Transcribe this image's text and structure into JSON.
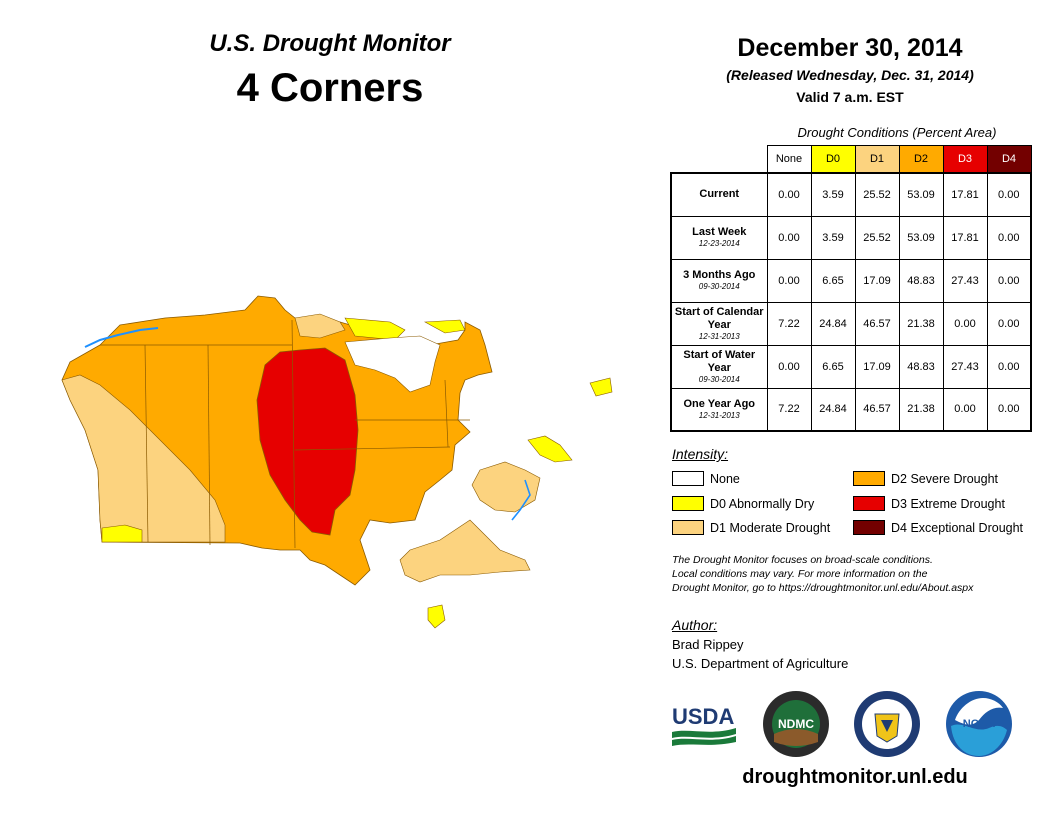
{
  "header": {
    "title": "U.S. Drought Monitor",
    "region": "4 Corners",
    "date": "December 30, 2014",
    "released": "(Released Wednesday, Dec. 31, 2014)",
    "valid": "Valid 7 a.m. EST"
  },
  "table": {
    "caption": "Drought Conditions (Percent Area)",
    "columns": [
      {
        "label": "None",
        "color": "#ffffff",
        "text_color": "#000000"
      },
      {
        "label": "D0",
        "color": "#ffff00",
        "text_color": "#000000"
      },
      {
        "label": "D1",
        "color": "#fcd37f",
        "text_color": "#000000"
      },
      {
        "label": "D2",
        "color": "#ffaa00",
        "text_color": "#000000"
      },
      {
        "label": "D3",
        "color": "#e60000",
        "text_color": "#ffffff"
      },
      {
        "label": "D4",
        "color": "#730000",
        "text_color": "#ffffff"
      }
    ],
    "rows": [
      {
        "label": "Current",
        "date": "",
        "values": [
          "0.00",
          "3.59",
          "25.52",
          "53.09",
          "17.81",
          "0.00"
        ]
      },
      {
        "label": "Last Week",
        "date": "12-23-2014",
        "values": [
          "0.00",
          "3.59",
          "25.52",
          "53.09",
          "17.81",
          "0.00"
        ]
      },
      {
        "label": "3 Months Ago",
        "date": "09-30-2014",
        "values": [
          "0.00",
          "6.65",
          "17.09",
          "48.83",
          "27.43",
          "0.00"
        ]
      },
      {
        "label": "Start of Calendar Year",
        "date": "12-31-2013",
        "values": [
          "7.22",
          "24.84",
          "46.57",
          "21.38",
          "0.00",
          "0.00"
        ]
      },
      {
        "label": "Start of Water Year",
        "date": "09-30-2014",
        "values": [
          "0.00",
          "6.65",
          "17.09",
          "48.83",
          "27.43",
          "0.00"
        ]
      },
      {
        "label": "One Year Ago",
        "date": "12-31-2013",
        "values": [
          "7.22",
          "24.84",
          "46.57",
          "21.38",
          "0.00",
          "0.00"
        ]
      }
    ]
  },
  "legend": {
    "title": "Intensity:",
    "items": [
      {
        "label": "None",
        "color": "#ffffff"
      },
      {
        "label": "D0 Abnormally Dry",
        "color": "#ffff00"
      },
      {
        "label": "D1 Moderate Drought",
        "color": "#fcd37f"
      },
      {
        "label": "D2 Severe Drought",
        "color": "#ffaa00"
      },
      {
        "label": "D3 Extreme Drought",
        "color": "#e60000"
      },
      {
        "label": "D4 Exceptional Drought",
        "color": "#730000"
      }
    ]
  },
  "disclaimer": [
    "The Drought Monitor focuses on broad-scale conditions.",
    "Local conditions may vary. For more information on the",
    "Drought Monitor, go to https://droughtmonitor.unl.edu/About.aspx"
  ],
  "author": {
    "title": "Author:",
    "name": "Brad Rippey",
    "organization": "U.S. Department of Agriculture"
  },
  "logos": {
    "usda": "USDA",
    "ndmc": "NDMC",
    "noaa": "NOAA"
  },
  "footer": {
    "url": "droughtmonitor.unl.edu"
  },
  "map": {
    "water_color": "#1e90ff",
    "no_drought_color": "#ffffff"
  }
}
